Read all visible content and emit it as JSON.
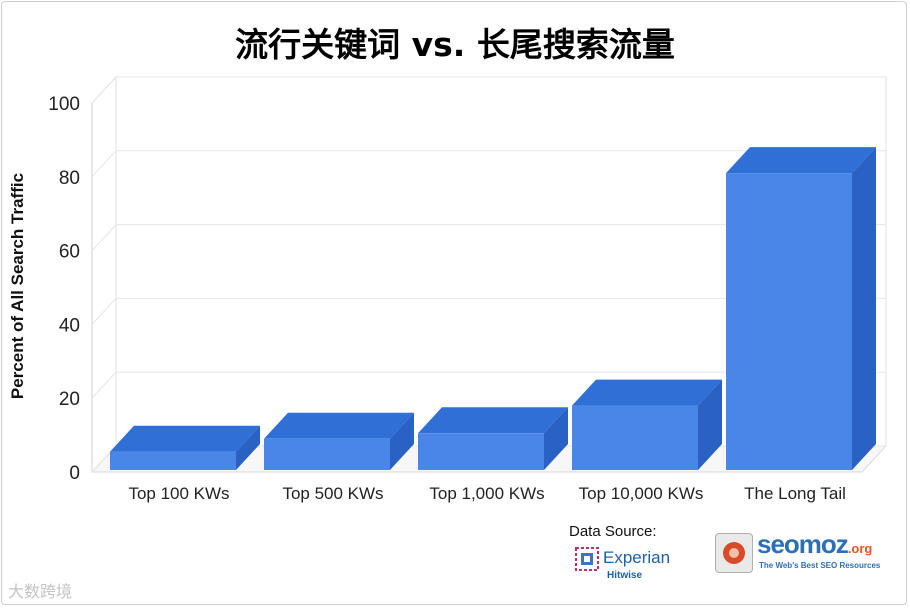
{
  "title": "流行关键词 vs. 长尾搜索流量",
  "chart_data": {
    "type": "bar",
    "title": "流行关键词 vs. 长尾搜索流量",
    "xlabel": "",
    "ylabel": "Percent of All Search Traffic",
    "categories": [
      "Top 100 KWs",
      "Top 500 KWs",
      "Top 1,000 KWs",
      "Top 10,000 KWs",
      "The Long Tail"
    ],
    "values": [
      5.5,
      9,
      10.5,
      18,
      81
    ],
    "ylim": [
      0,
      100
    ],
    "yticks": [
      "0",
      "20",
      "40",
      "60",
      "80",
      "100"
    ],
    "grid": true,
    "bar_color": "#4a86e8",
    "bar_top_color": "#2f6fd6",
    "bar_side_color": "#2a62c4",
    "style": "3d"
  },
  "source": {
    "label": "Data Source:",
    "experian": {
      "name": "Experian",
      "sub": "Hitwise"
    },
    "seomoz": {
      "name": "seomoz",
      "tld": ".org",
      "tagline": "The Web's Best SEO Resources"
    }
  },
  "watermark": "大数跨境"
}
